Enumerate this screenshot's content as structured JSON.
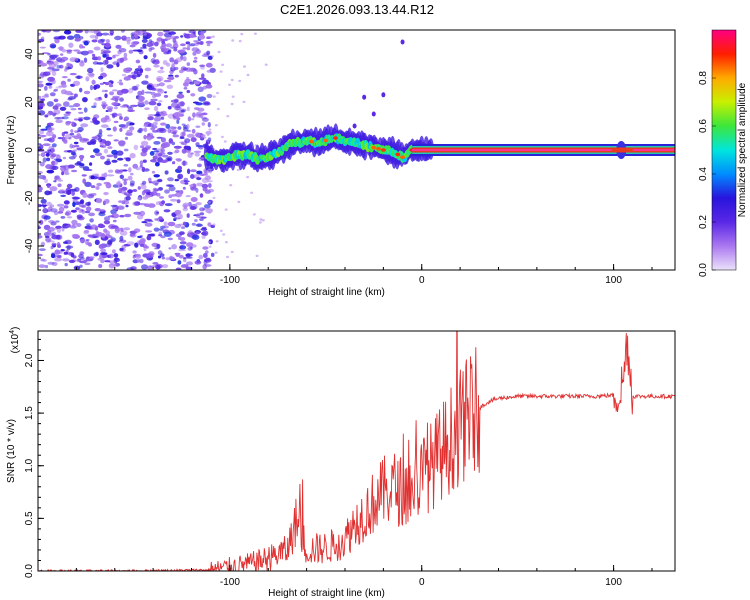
{
  "figure": {
    "title": "C2E1.2026.093.13.44.R12"
  },
  "chart_data": [
    {
      "type": "heatmap",
      "name": "spectrogram",
      "xlabel": "Height of straight line (km)",
      "ylabel": "Frequency (Hz)",
      "xlim": [
        -200,
        132
      ],
      "ylim": [
        -50,
        50
      ],
      "xticks": [
        -100,
        0,
        100
      ],
      "yticks": [
        -40,
        -20,
        0,
        20,
        40
      ],
      "noise_region_x": [
        -200,
        -112
      ],
      "signal_track": {
        "x": [
          -112,
          -105,
          -100,
          -95,
          -90,
          -85,
          -80,
          -75,
          -70,
          -65,
          -60,
          -55,
          -50,
          -45,
          -40,
          -35,
          -30,
          -25,
          -20,
          -15,
          -12,
          -10,
          -8,
          -5,
          0,
          10,
          20,
          50,
          80,
          100,
          105,
          110,
          132
        ],
        "freq": [
          -3,
          -4,
          -3,
          -2,
          -2,
          -4,
          -3,
          -1,
          2,
          3,
          4,
          3,
          4,
          5,
          4,
          3,
          2,
          1,
          0,
          -1,
          -2,
          -3,
          -2,
          0,
          0,
          0,
          0,
          0,
          0,
          0,
          0,
          0,
          0
        ]
      },
      "colorbar": {
        "label": "Normalized spectral amplitude",
        "ticks": [
          0.0,
          0.2,
          0.4,
          0.6,
          0.8
        ],
        "range": [
          0,
          1
        ]
      }
    },
    {
      "type": "line",
      "name": "snr",
      "xlabel": "Height of straight line (km)",
      "ylabel": "SNR (10 * v/v)",
      "multiplier_label": "(x10",
      "multiplier_exp": "4",
      "multiplier_close": ")",
      "xlim": [
        -200,
        132
      ],
      "ylim": [
        0,
        2.28
      ],
      "xticks": [
        -100,
        0,
        100
      ],
      "yticks": [
        "0.0",
        "0.5",
        "1.0",
        "1.5",
        "2.0"
      ],
      "ytick_values": [
        0,
        0.5,
        1.0,
        1.5,
        2.0
      ],
      "series": [
        {
          "name": "SNR",
          "color": "#e03030",
          "x": [
            -200,
            -150,
            -110,
            -100,
            -90,
            -80,
            -70,
            -65,
            -60,
            -50,
            -45,
            -40,
            -35,
            -30,
            -25,
            -20,
            -15,
            -10,
            -5,
            0,
            5,
            10,
            15,
            20,
            25,
            30,
            35,
            40,
            50,
            60,
            70,
            80,
            90,
            100,
            103,
            105,
            107,
            110,
            120,
            132
          ],
          "values": [
            0.0,
            0.0,
            0.01,
            0.04,
            0.07,
            0.12,
            0.2,
            0.5,
            0.2,
            0.22,
            0.25,
            0.3,
            0.45,
            0.55,
            0.65,
            0.75,
            0.8,
            0.75,
            0.78,
            0.9,
            1.0,
            1.12,
            1.25,
            1.37,
            1.47,
            1.55,
            1.61,
            1.64,
            1.66,
            1.66,
            1.66,
            1.66,
            1.66,
            1.67,
            1.7,
            1.8,
            2.2,
            1.66,
            1.66,
            1.66
          ]
        }
      ]
    }
  ],
  "colors": {
    "line": "#e03030",
    "axis": "#000000"
  }
}
